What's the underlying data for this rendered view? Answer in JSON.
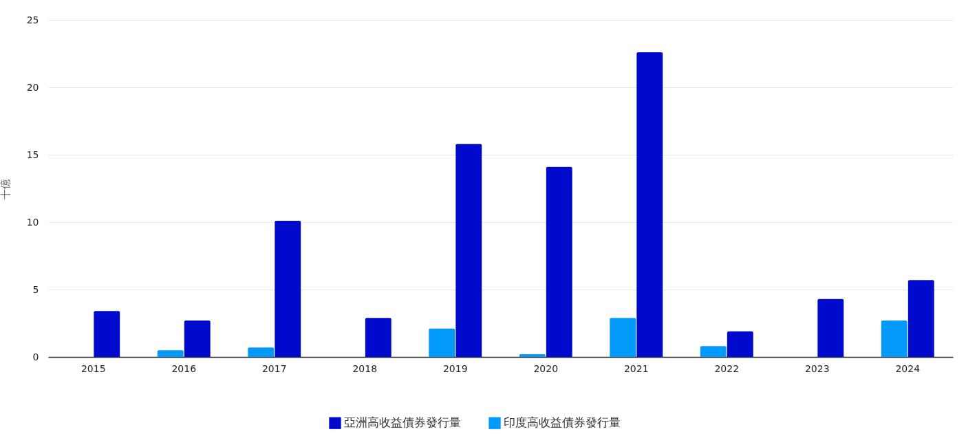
{
  "chart_data": {
    "type": "bar",
    "ylabel": "十億",
    "categories": [
      "2015",
      "2016",
      "2017",
      "2018",
      "2019",
      "2020",
      "2021",
      "2022",
      "2023",
      "2024"
    ],
    "series": [
      {
        "name": "亞洲高收益債券發行量",
        "color": "#000acd",
        "values": [
          3.4,
          2.7,
          10.1,
          2.9,
          15.8,
          14.1,
          22.6,
          1.9,
          4.3,
          5.7
        ]
      },
      {
        "name": "印度高收益債券發行量",
        "color": "#0399fa",
        "values": [
          null,
          0.5,
          0.7,
          null,
          2.1,
          0.2,
          2.9,
          0.8,
          null,
          2.7
        ]
      }
    ],
    "ylim": [
      0,
      25
    ],
    "yticks": [
      0,
      5,
      10,
      15,
      20,
      25
    ],
    "grid": "y",
    "legend": "bottom"
  }
}
